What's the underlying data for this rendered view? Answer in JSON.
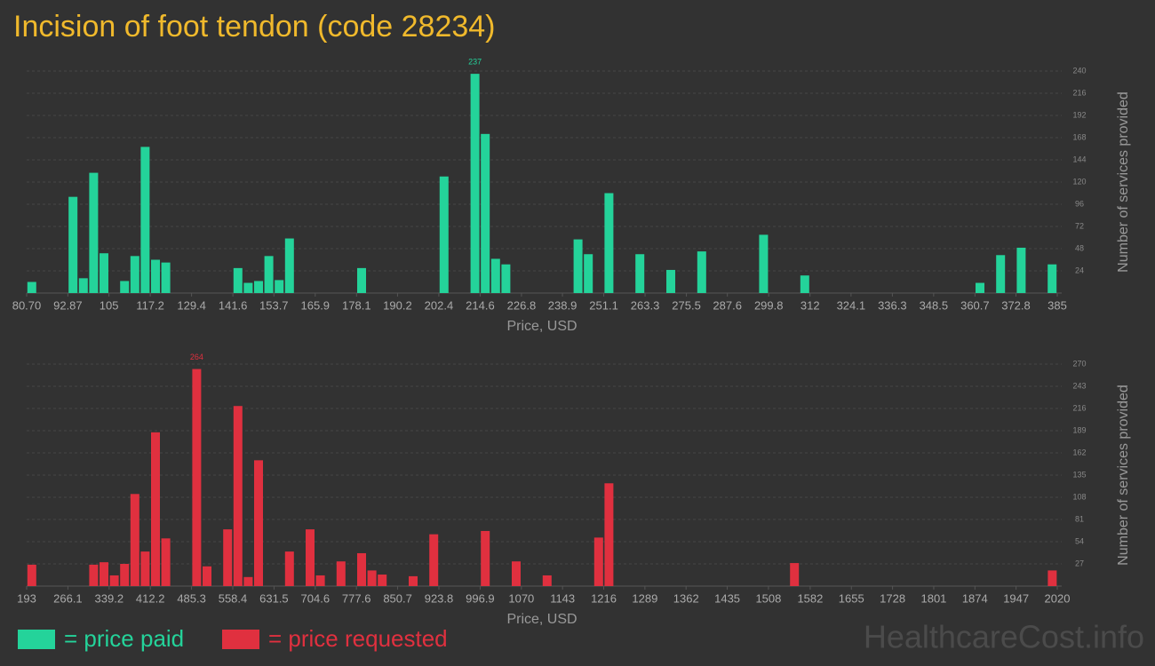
{
  "title": "Incision of foot tendon (code 28234)",
  "watermark": "HealthcareCost.info",
  "chart_data": [
    {
      "type": "bar",
      "xlabel": "Price, USD",
      "ylabel": "Number of services provided",
      "grid": true,
      "xlim": [
        80.7,
        385
      ],
      "ylim": [
        0,
        240
      ],
      "xticks": [
        {
          "value": 80.7,
          "label": "80.70"
        },
        92.87,
        105,
        117.2,
        129.4,
        141.6,
        153.7,
        165.9,
        178.1,
        190.2,
        202.4,
        214.6,
        226.8,
        238.9,
        251.1,
        263.3,
        275.5,
        287.6,
        299.8,
        312,
        324.1,
        336.3,
        348.5,
        360.7,
        372.8,
        385
      ],
      "yticks": [
        24,
        48,
        72,
        96,
        120,
        144,
        168,
        192,
        216,
        240
      ],
      "x": [
        82.22,
        94.39,
        97.44,
        100.48,
        103.52,
        109.61,
        112.65,
        115.69,
        118.74,
        121.78,
        143.08,
        146.12,
        149.17,
        152.21,
        155.25,
        158.3,
        179.6,
        203.94,
        213.07,
        216.11,
        219.16,
        222.2,
        243.5,
        246.54,
        252.63,
        261.76,
        270.89,
        280.02,
        298.28,
        310.45,
        362.18,
        368.26,
        374.35,
        383.48
      ],
      "series": [
        {
          "name": "= price paid",
          "color": "#24d39a",
          "values": [
            12,
            104,
            16,
            130,
            43,
            13,
            40,
            158,
            36,
            33,
            27,
            11,
            13,
            40,
            14,
            59,
            27,
            126,
            237,
            172,
            37,
            31,
            58,
            42,
            108,
            42,
            25,
            45,
            63,
            19,
            11,
            41,
            49,
            31
          ]
        }
      ]
    },
    {
      "type": "bar",
      "xlabel": "Price, USD",
      "ylabel": "Number of services provided",
      "grid": true,
      "xlim": [
        193,
        2020
      ],
      "ylim": [
        0,
        270
      ],
      "xticks": [
        193,
        266.1,
        339.2,
        412.2,
        485.3,
        558.4,
        631.5,
        704.6,
        777.6,
        850.7,
        923.8,
        996.9,
        1070,
        1143,
        1216,
        1289,
        1362,
        1435,
        1508,
        1582,
        1655,
        1728,
        1801,
        1874,
        1947,
        2020
      ],
      "yticks": [
        27,
        54,
        81,
        108,
        135,
        162,
        189,
        216,
        243,
        270
      ],
      "x": [
        202.14,
        311.76,
        330.03,
        348.3,
        366.57,
        384.84,
        403.11,
        421.38,
        439.65,
        494.46,
        512.73,
        549.27,
        567.54,
        585.81,
        604.08,
        658.89,
        695.43,
        713.7,
        750.24,
        786.78,
        805.05,
        823.32,
        878.13,
        914.67,
        1006.02,
        1060.83,
        1115.64,
        1206.99,
        1225.26,
        1554.12,
        2011.14
      ],
      "series": [
        {
          "name": "= price requested",
          "color": "#e0303f",
          "values": [
            26,
            26,
            29,
            13,
            27,
            112,
            42,
            187,
            58,
            264,
            24,
            69,
            219,
            11,
            153,
            42,
            69,
            13,
            30,
            40,
            19,
            14,
            12,
            63,
            67,
            30,
            13,
            59,
            125,
            28,
            19
          ]
        }
      ]
    }
  ]
}
